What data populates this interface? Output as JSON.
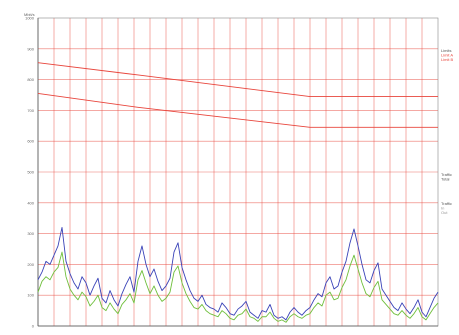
{
  "chart_data": {
    "type": "line",
    "title": "",
    "xlabel": "",
    "ylabel": "Mbit/s",
    "ylim": [
      0,
      1000
    ],
    "yticks": [
      {
        "value": 0,
        "label": "0"
      },
      {
        "value": 100,
        "label": "100"
      },
      {
        "value": 200,
        "label": "200"
      },
      {
        "value": 300,
        "label": "300"
      },
      {
        "value": 400,
        "label": "400"
      },
      {
        "value": 500,
        "label": "500"
      },
      {
        "value": 600,
        "label": "600"
      },
      {
        "value": 700,
        "label": "700"
      },
      {
        "value": 800,
        "label": "800"
      },
      {
        "value": 900,
        "label": "900"
      },
      {
        "value": 1000,
        "label": "1000"
      }
    ],
    "grid": true,
    "grid_color": "#e8453c",
    "vertical_grid_count": 24,
    "colors": {
      "traffic_in": "#3a43b8",
      "traffic_out": "#6fbf3c",
      "limit": "#e8453c",
      "grid": "#e8453c",
      "axis": "#888888"
    },
    "legend_position": "right",
    "legend_labels": [
      "Limits",
      "Limit A",
      "Limit B",
      "Traffic",
      "Total",
      "Traffic",
      "In",
      "Out"
    ],
    "series": [
      {
        "kind": "limit",
        "x": [
          0,
          25,
          68,
          100
        ],
        "values": [
          855,
          815,
          745,
          745
        ]
      },
      {
        "kind": "limit",
        "x": [
          0,
          25,
          68,
          100
        ],
        "values": [
          755,
          710,
          645,
          645
        ]
      },
      {
        "kind": "traffic",
        "x": [
          0,
          1,
          2,
          3,
          4,
          5,
          6,
          7,
          8,
          9,
          10,
          11,
          12,
          13,
          14,
          15,
          16,
          17,
          18,
          19,
          20,
          21,
          22,
          23,
          24,
          25,
          26,
          27,
          28,
          29,
          30,
          31,
          32,
          33,
          34,
          35,
          36,
          37,
          38,
          39,
          40,
          41,
          42,
          43,
          44,
          45,
          46,
          47,
          48,
          49,
          50,
          51,
          52,
          53,
          54,
          55,
          56,
          57,
          58,
          59,
          60,
          61,
          62,
          63,
          64,
          65,
          66,
          67,
          68,
          69,
          70,
          71,
          72,
          73,
          74,
          75,
          76,
          77,
          78,
          79,
          80,
          81,
          82,
          83,
          84,
          85,
          86,
          87,
          88,
          89,
          90,
          91,
          92,
          93,
          94,
          95,
          96,
          97,
          98,
          99,
          100
        ],
        "values": [
          150,
          175,
          210,
          200,
          230,
          260,
          320,
          210,
          170,
          140,
          120,
          160,
          140,
          100,
          130,
          155,
          90,
          75,
          115,
          85,
          65,
          105,
          135,
          160,
          110,
          210,
          260,
          200,
          160,
          185,
          145,
          115,
          130,
          155,
          240,
          270,
          190,
          150,
          115,
          90,
          80,
          100,
          70,
          60,
          55,
          45,
          75,
          60,
          40,
          35,
          55,
          65,
          80,
          45,
          35,
          25,
          50,
          45,
          70,
          35,
          25,
          30,
          20,
          45,
          60,
          45,
          35,
          50,
          60,
          85,
          105,
          95,
          140,
          160,
          120,
          130,
          175,
          210,
          270,
          315,
          260,
          200,
          150,
          140,
          180,
          205,
          120,
          100,
          80,
          60,
          50,
          75,
          55,
          40,
          60,
          85,
          45,
          30,
          60,
          90,
          110
        ]
      },
      {
        "kind": "traffic",
        "x": [
          0,
          1,
          2,
          3,
          4,
          5,
          6,
          7,
          8,
          9,
          10,
          11,
          12,
          13,
          14,
          15,
          16,
          17,
          18,
          19,
          20,
          21,
          22,
          23,
          24,
          25,
          26,
          27,
          28,
          29,
          30,
          31,
          32,
          33,
          34,
          35,
          36,
          37,
          38,
          39,
          40,
          41,
          42,
          43,
          44,
          45,
          46,
          47,
          48,
          49,
          50,
          51,
          52,
          53,
          54,
          55,
          56,
          57,
          58,
          59,
          60,
          61,
          62,
          63,
          64,
          65,
          66,
          67,
          68,
          69,
          70,
          71,
          72,
          73,
          74,
          75,
          76,
          77,
          78,
          79,
          80,
          81,
          82,
          83,
          84,
          85,
          86,
          87,
          88,
          89,
          90,
          91,
          92,
          93,
          94,
          95,
          96,
          97,
          98,
          99,
          100
        ],
        "values": [
          110,
          145,
          160,
          150,
          175,
          190,
          240,
          160,
          120,
          100,
          85,
          110,
          95,
          65,
          80,
          100,
          60,
          50,
          75,
          55,
          40,
          70,
          85,
          105,
          75,
          150,
          180,
          140,
          105,
          130,
          100,
          80,
          90,
          110,
          175,
          195,
          140,
          105,
          80,
          60,
          55,
          70,
          50,
          40,
          35,
          30,
          50,
          40,
          25,
          20,
          35,
          40,
          55,
          30,
          25,
          15,
          30,
          30,
          45,
          25,
          15,
          20,
          12,
          30,
          40,
          30,
          25,
          35,
          40,
          60,
          75,
          65,
          100,
          110,
          85,
          90,
          125,
          150,
          195,
          230,
          185,
          140,
          105,
          95,
          125,
          145,
          85,
          70,
          55,
          40,
          35,
          50,
          35,
          25,
          40,
          60,
          30,
          20,
          40,
          60,
          75
        ]
      }
    ]
  }
}
